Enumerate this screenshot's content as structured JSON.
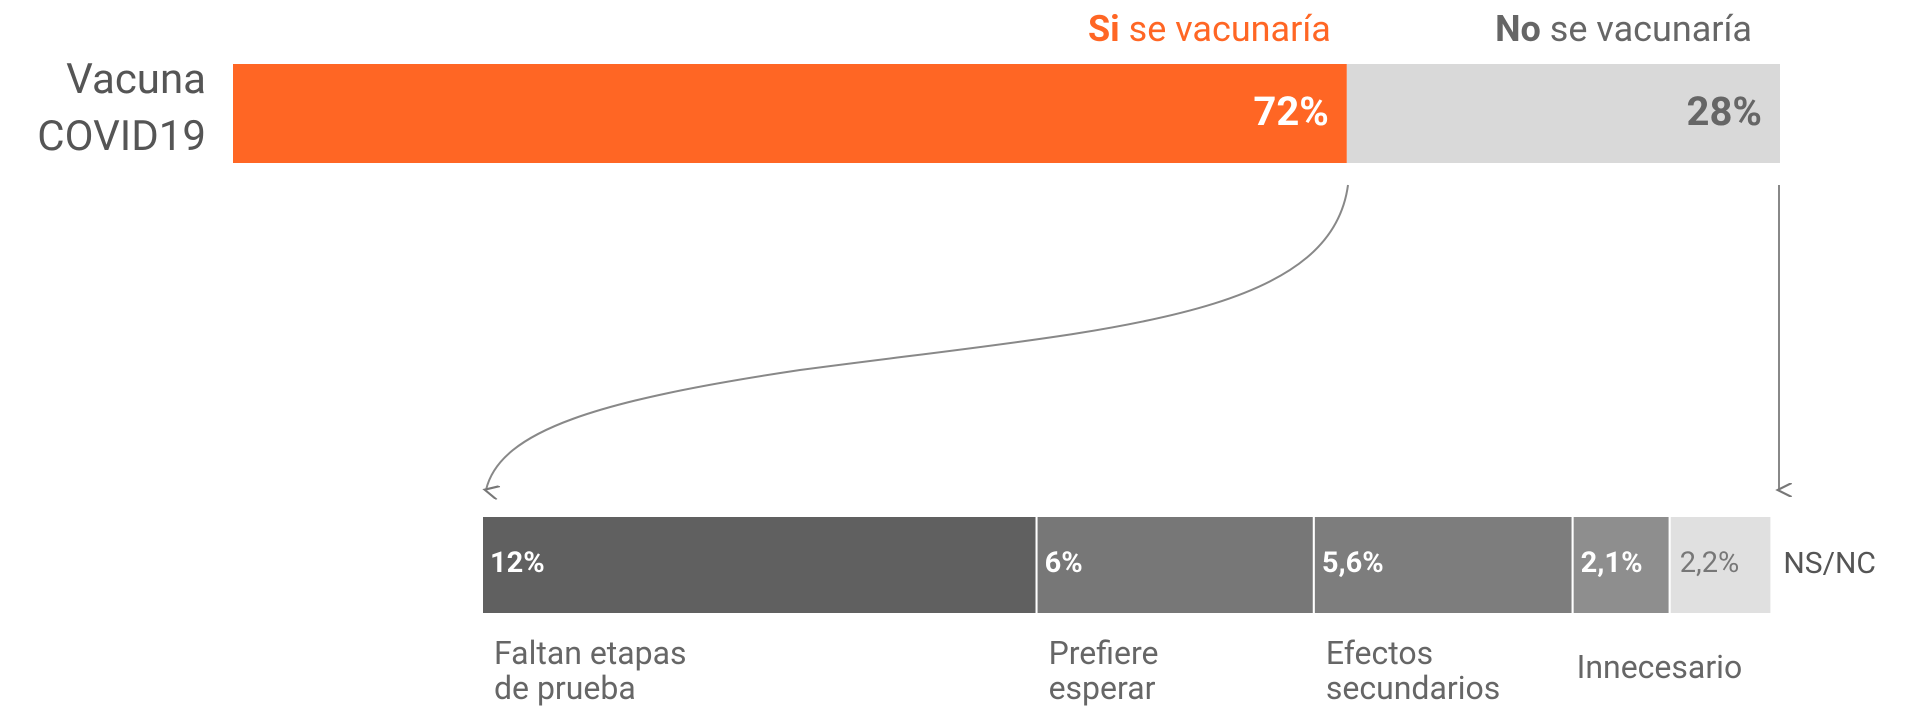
{
  "chart_data": [
    {
      "type": "bar",
      "orientation": "horizontal",
      "stacked": true,
      "categories": [
        "Vacuna COVID19"
      ],
      "xlim": [
        0,
        100
      ],
      "series": [
        {
          "name": "Si se vacunaría",
          "color": "#ff6624",
          "values": [
            72
          ],
          "value_labels": [
            "72%"
          ]
        },
        {
          "name": "No se vacunaría",
          "color": "#d9d9d9",
          "values": [
            28
          ],
          "value_labels": [
            "28%"
          ]
        }
      ]
    },
    {
      "type": "bar",
      "orientation": "horizontal",
      "stacked": true,
      "xlim": [
        0,
        28
      ],
      "series": [
        {
          "name": "Faltan etapas de prueba",
          "color": "#606060",
          "values": [
            12
          ],
          "value_labels": [
            "12%"
          ]
        },
        {
          "name": "Prefiere esperar",
          "color": "#777777",
          "values": [
            6
          ],
          "value_labels": [
            "6%"
          ]
        },
        {
          "name": "Efectos secundarios",
          "color": "#7d7d7d",
          "values": [
            5.6
          ],
          "value_labels": [
            "5,6%"
          ]
        },
        {
          "name": "Innecesario",
          "color": "#8e8e8e",
          "values": [
            2.1
          ],
          "value_labels": [
            "2,1%"
          ]
        },
        {
          "name": "NS/NC",
          "color": "#e0e0e0",
          "values": [
            2.2
          ],
          "value_labels": [
            "2,2%"
          ]
        }
      ]
    }
  ]
}
